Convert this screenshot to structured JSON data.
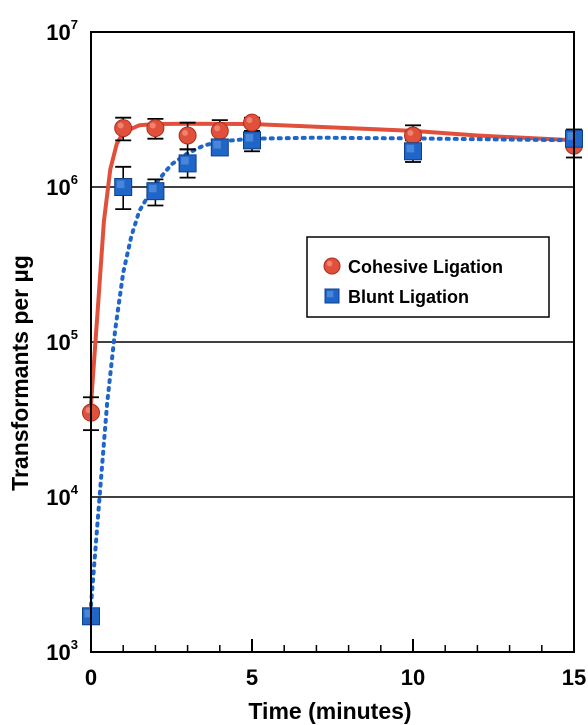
{
  "colors": {
    "cohesive": "#e0503a",
    "blunt": "#1f66c8",
    "grid": "#000000",
    "axis": "#000000",
    "background": "#ffffff"
  },
  "chart_data": {
    "type": "scatter",
    "xlabel": "Time (minutes)",
    "ylabel": "Transformants per µg",
    "xlim": [
      0,
      15
    ],
    "ylim": [
      1000,
      10000000
    ],
    "yscale": "log",
    "grid": "horizontal at each decade",
    "legend_position": "right, middle",
    "x_ticks": [
      {
        "value": 0,
        "label": "0"
      },
      {
        "value": 5,
        "label": "5"
      },
      {
        "value": 10,
        "label": "10"
      },
      {
        "value": 15,
        "label": "15"
      }
    ],
    "x_minor_ticks": [
      1,
      2,
      3,
      4,
      6,
      7,
      8,
      9,
      11,
      12,
      13,
      14
    ],
    "y_ticks": [
      {
        "value": 1000,
        "base": "10",
        "exp": "3"
      },
      {
        "value": 10000,
        "base": "10",
        "exp": "4"
      },
      {
        "value": 100000,
        "base": "10",
        "exp": "5"
      },
      {
        "value": 1000000,
        "base": "10",
        "exp": "6"
      },
      {
        "value": 10000000,
        "base": "10",
        "exp": "7"
      }
    ],
    "series": [
      {
        "name": "Cohesive Ligation",
        "marker": "circle",
        "line": "solid",
        "points": [
          {
            "x": 0,
            "y": 35000,
            "err_lo": 27000,
            "err_hi": 44000
          },
          {
            "x": 1,
            "y": 2400000,
            "err_lo": 2000000,
            "err_hi": 2800000
          },
          {
            "x": 2,
            "y": 2400000,
            "err_lo": 2050000,
            "err_hi": 2750000
          },
          {
            "x": 3,
            "y": 2150000,
            "err_lo": 1750000,
            "err_hi": 2600000
          },
          {
            "x": 4,
            "y": 2300000,
            "err_lo": 1950000,
            "err_hi": 2700000
          },
          {
            "x": 5,
            "y": 2600000,
            "err_lo": 2300000,
            "err_hi": 2800000
          },
          {
            "x": 10,
            "y": 2150000,
            "err_lo": 1800000,
            "err_hi": 2500000
          },
          {
            "x": 15,
            "y": 1850000,
            "err_lo": 1550000,
            "err_hi": 2200000
          }
        ],
        "fit": [
          [
            0,
            40000
          ],
          [
            0.2,
            150000
          ],
          [
            0.4,
            600000
          ],
          [
            0.6,
            1300000
          ],
          [
            0.8,
            1900000
          ],
          [
            1,
            2250000
          ],
          [
            1.5,
            2500000
          ],
          [
            2,
            2550000
          ],
          [
            3,
            2560000
          ],
          [
            5,
            2550000
          ],
          [
            8,
            2400000
          ],
          [
            10,
            2300000
          ],
          [
            12,
            2150000
          ],
          [
            15,
            2000000
          ]
        ]
      },
      {
        "name": "Blunt Ligation",
        "marker": "square",
        "line": "dotted",
        "points": [
          {
            "x": 0,
            "y": 1700,
            "err_lo": 1600,
            "err_hi": 1800
          },
          {
            "x": 1,
            "y": 1000000,
            "err_lo": 720000,
            "err_hi": 1350000
          },
          {
            "x": 2,
            "y": 940000,
            "err_lo": 760000,
            "err_hi": 1120000
          },
          {
            "x": 3,
            "y": 1420000,
            "err_lo": 1150000,
            "err_hi": 1750000
          },
          {
            "x": 4,
            "y": 1800000,
            "err_lo": 1650000,
            "err_hi": 1950000
          },
          {
            "x": 5,
            "y": 2000000,
            "err_lo": 1700000,
            "err_hi": 2300000
          },
          {
            "x": 10,
            "y": 1700000,
            "err_lo": 1450000,
            "err_hi": 2000000
          },
          {
            "x": 15,
            "y": 2050000,
            "err_lo": 1800000,
            "err_hi": 2350000
          }
        ],
        "fit": [
          [
            0,
            2000
          ],
          [
            0.25,
            9000
          ],
          [
            0.5,
            40000
          ],
          [
            0.75,
            120000
          ],
          [
            1,
            280000
          ],
          [
            1.25,
            480000
          ],
          [
            1.5,
            700000
          ],
          [
            2,
            1050000
          ],
          [
            2.5,
            1400000
          ],
          [
            3,
            1650000
          ],
          [
            3.5,
            1850000
          ],
          [
            4,
            1970000
          ],
          [
            5,
            2050000
          ],
          [
            7,
            2080000
          ],
          [
            10,
            2060000
          ],
          [
            15,
            2000000
          ]
        ]
      }
    ]
  }
}
